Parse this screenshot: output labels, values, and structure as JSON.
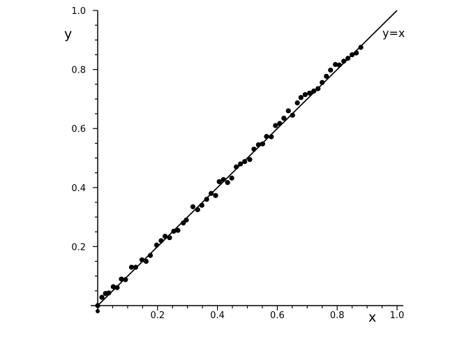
{
  "chart_data": {
    "type": "scatter",
    "xlabel": "x",
    "ylabel": "y",
    "xlim": [
      0,
      1.0
    ],
    "ylim": [
      0,
      1.0
    ],
    "x_ticks": [
      0.2,
      0.4,
      0.6,
      0.8,
      1.0
    ],
    "y_ticks": [
      0.2,
      0.4,
      0.6,
      0.8,
      1.0
    ],
    "x_tick_labels": [
      "0.2",
      "0.4",
      "0.6",
      "0.8",
      "1.0"
    ],
    "y_tick_labels": [
      "0.2",
      "0.4",
      "0.6",
      "0.8",
      "1.0"
    ],
    "grid": false,
    "reference_line": {
      "label": "y=x",
      "from": [
        0,
        0
      ],
      "to": [
        1.0,
        1.0
      ]
    },
    "points": {
      "x": [
        0.0,
        0.014,
        0.026,
        0.037,
        0.052,
        0.065,
        0.079,
        0.093,
        0.113,
        0.127,
        0.148,
        0.162,
        0.176,
        0.197,
        0.212,
        0.225,
        0.24,
        0.254,
        0.268,
        0.286,
        0.296,
        0.318,
        0.334,
        0.348,
        0.364,
        0.379,
        0.394,
        0.406,
        0.42,
        0.434,
        0.448,
        0.463,
        0.477,
        0.491,
        0.508,
        0.522,
        0.537,
        0.551,
        0.564,
        0.58,
        0.594,
        0.608,
        0.622,
        0.637,
        0.651,
        0.667,
        0.679,
        0.693,
        0.708,
        0.722,
        0.736,
        0.75,
        0.764,
        0.778,
        0.794,
        0.807,
        0.822,
        0.836,
        0.85,
        0.864,
        0.879
      ],
      "y": [
        0.0,
        0.028,
        0.041,
        0.043,
        0.064,
        0.061,
        0.09,
        0.088,
        0.13,
        0.13,
        0.155,
        0.15,
        0.17,
        0.205,
        0.22,
        0.235,
        0.23,
        0.252,
        0.255,
        0.28,
        0.29,
        0.335,
        0.325,
        0.34,
        0.36,
        0.38,
        0.373,
        0.42,
        0.427,
        0.417,
        0.432,
        0.47,
        0.48,
        0.488,
        0.495,
        0.53,
        0.545,
        0.548,
        0.573,
        0.572,
        0.61,
        0.617,
        0.635,
        0.66,
        0.645,
        0.687,
        0.705,
        0.715,
        0.72,
        0.727,
        0.735,
        0.756,
        0.777,
        0.798,
        0.817,
        0.815,
        0.828,
        0.838,
        0.85,
        0.856,
        0.875
      ]
    }
  }
}
